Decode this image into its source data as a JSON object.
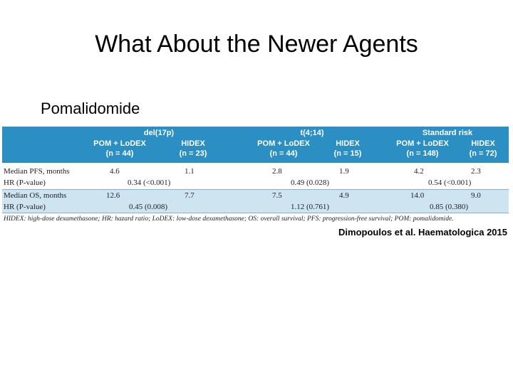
{
  "slide": {
    "title": "What About the Newer Agents",
    "subtitle": "Pomalidomide",
    "citation": "Dimopoulos et al. Haematologica 2015"
  },
  "table": {
    "groups": [
      "del(17p)",
      "t(4;14)",
      "Standard risk"
    ],
    "col_headers": [
      {
        "line1": "POM + LoDEX",
        "line2": "(n = 44)"
      },
      {
        "line1": "HIDEX",
        "line2": "(n = 23)"
      },
      {
        "line1": "POM + LoDEX",
        "line2": "(n = 44)"
      },
      {
        "line1": "HIDEX",
        "line2": "(n = 15)"
      },
      {
        "line1": "POM + LoDEX",
        "line2": "(n = 148)"
      },
      {
        "line1": "HIDEX",
        "line2": "(n = 72)"
      }
    ],
    "rows": {
      "pfs_label": "Median PFS, months",
      "pfs": [
        "4.6",
        "1.1",
        "2.8",
        "1.9",
        "4.2",
        "2.3"
      ],
      "pfs_hr_label": "HR (P-value)",
      "pfs_hr": [
        "0.34 (<0.001)",
        "0.49 (0.028)",
        "0.54 (<0.001)"
      ],
      "os_label": "Median OS, months",
      "os": [
        "12.6",
        "7.7",
        "7.5",
        "4.9",
        "14.0",
        "9.0"
      ],
      "os_hr_label": "HR (P-value)",
      "os_hr": [
        "0.45 (0.008)",
        "1.12 (0.761)",
        "0.85 (0.380)"
      ]
    },
    "footnote": "HIDEX: high-dose dexamethasone; HR: hazard ratio; LoDEX: low-dose dexamethasone; OS: overall survival; PFS: progression-free survival; POM: pomalidomide.",
    "colors": {
      "header_bg": "#2b8fc4",
      "shade_bg": "#cfe4f1"
    }
  }
}
